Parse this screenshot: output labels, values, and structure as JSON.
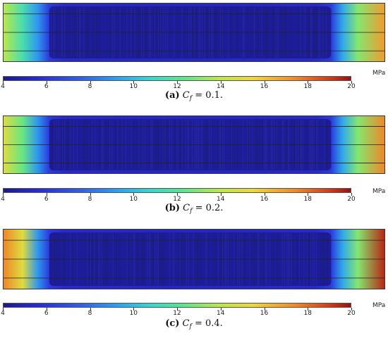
{
  "colorbar": {
    "unit": "MPa",
    "ticks": [
      "4",
      "6",
      "8",
      "10",
      "12",
      "14",
      "16",
      "18",
      "20"
    ],
    "min": 4,
    "max": 20
  },
  "panels": [
    {
      "caption_label": "(a)",
      "caption_var": "C",
      "caption_sub": "f",
      "caption_value": " = 0.1.",
      "left_stress_mpa": 14,
      "right_stress_mpa": 17
    },
    {
      "caption_label": "(b)",
      "caption_var": "C",
      "caption_sub": "f",
      "caption_value": " = 0.2.",
      "left_stress_mpa": 15,
      "right_stress_mpa": 17.5
    },
    {
      "caption_label": "(c)",
      "caption_var": "C",
      "caption_sub": "f",
      "caption_value": " = 0.4.",
      "left_stress_mpa": 17.5,
      "right_stress_mpa": 19.5
    }
  ]
}
